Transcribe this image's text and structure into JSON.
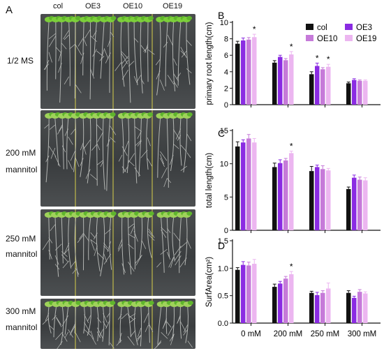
{
  "panel_a": {
    "letter": "A",
    "columns": [
      "col",
      "OE3",
      "OE10",
      "OE19"
    ],
    "rows": [
      {
        "label_lines": [
          "1/2 MS"
        ]
      },
      {
        "label_lines": [
          "200 mM",
          "mannitol"
        ]
      },
      {
        "label_lines": [
          "250 mM",
          "mannitol"
        ]
      },
      {
        "label_lines": [
          "300 mM",
          "mannitol"
        ]
      }
    ]
  },
  "legend": {
    "entries": [
      {
        "name": "col",
        "color": "#111111"
      },
      {
        "name": "OE3",
        "color": "#8a2be2"
      },
      {
        "name": "OE10",
        "color": "#c67ad9"
      },
      {
        "name": "OE19",
        "color": "#ecb6f0"
      }
    ]
  },
  "significance_mark": "*",
  "chart_data": [
    {
      "panel": "B",
      "type": "bar",
      "ylabel": "primary root length(cm)",
      "ylim": [
        0,
        10
      ],
      "yticks": [
        "0",
        "2",
        "4",
        "6",
        "8",
        "10"
      ],
      "categories": [
        "0 mM",
        "200 mM",
        "250 mM",
        "300 mM"
      ],
      "series": [
        {
          "name": "col",
          "values": [
            7.4,
            5.1,
            3.7,
            2.6
          ],
          "errors": [
            0.3,
            0.25,
            0.3,
            0.15
          ]
        },
        {
          "name": "OE3",
          "values": [
            7.8,
            5.8,
            4.7,
            3.0
          ],
          "errors": [
            0.3,
            0.2,
            0.35,
            0.15
          ]
        },
        {
          "name": "OE10",
          "values": [
            7.9,
            5.4,
            4.3,
            2.9
          ],
          "errors": [
            0.25,
            0.2,
            0.2,
            0.1
          ]
        },
        {
          "name": "OE19",
          "values": [
            8.2,
            6.1,
            4.6,
            2.9
          ],
          "errors": [
            0.35,
            0.35,
            0.3,
            0.1
          ]
        }
      ],
      "significant": [
        [
          0,
          3
        ],
        [
          1,
          3
        ],
        [
          2,
          1
        ],
        [
          2,
          3
        ]
      ]
    },
    {
      "panel": "C",
      "type": "bar",
      "ylabel": "total length(cm)",
      "ylim": [
        0,
        15
      ],
      "yticks": [
        "0",
        "5",
        "10",
        "15"
      ],
      "categories": [
        "0 mM",
        "200 mM",
        "250 mM",
        "300 mM"
      ],
      "series": [
        {
          "name": "col",
          "values": [
            12.6,
            9.5,
            8.9,
            6.2
          ],
          "errors": [
            0.7,
            0.6,
            0.7,
            0.3
          ]
        },
        {
          "name": "OE3",
          "values": [
            13.2,
            10.1,
            9.5,
            7.9
          ],
          "errors": [
            0.4,
            0.5,
            0.3,
            0.4
          ]
        },
        {
          "name": "OE10",
          "values": [
            13.8,
            10.5,
            9.2,
            7.6
          ],
          "errors": [
            0.6,
            0.3,
            0.5,
            0.4
          ]
        },
        {
          "name": "OE19",
          "values": [
            13.2,
            11.6,
            9.0,
            7.5
          ],
          "errors": [
            0.6,
            0.3,
            0.3,
            0.4
          ]
        }
      ],
      "significant": [
        [
          1,
          3
        ]
      ]
    },
    {
      "panel": "D",
      "type": "bar",
      "ylabel": "SurfArea(cm²)",
      "ylim": [
        0,
        1.5
      ],
      "yticks": [
        "0.0",
        "0.5",
        "1.0",
        "1.5"
      ],
      "categories": [
        "0 mM",
        "200 mM",
        "250 mM",
        "300 mM"
      ],
      "series": [
        {
          "name": "col",
          "values": [
            0.97,
            0.66,
            0.55,
            0.55
          ],
          "errors": [
            0.04,
            0.05,
            0.03,
            0.04
          ]
        },
        {
          "name": "OE3",
          "values": [
            1.06,
            0.72,
            0.51,
            0.46
          ],
          "errors": [
            0.06,
            0.04,
            0.05,
            0.03
          ]
        },
        {
          "name": "OE10",
          "values": [
            1.05,
            0.81,
            0.55,
            0.57
          ],
          "errors": [
            0.06,
            0.04,
            0.04,
            0.04
          ]
        },
        {
          "name": "OE19",
          "values": [
            1.08,
            0.89,
            0.63,
            0.54
          ],
          "errors": [
            0.08,
            0.05,
            0.1,
            0.03
          ]
        }
      ],
      "significant": [
        [
          1,
          3
        ]
      ]
    }
  ]
}
